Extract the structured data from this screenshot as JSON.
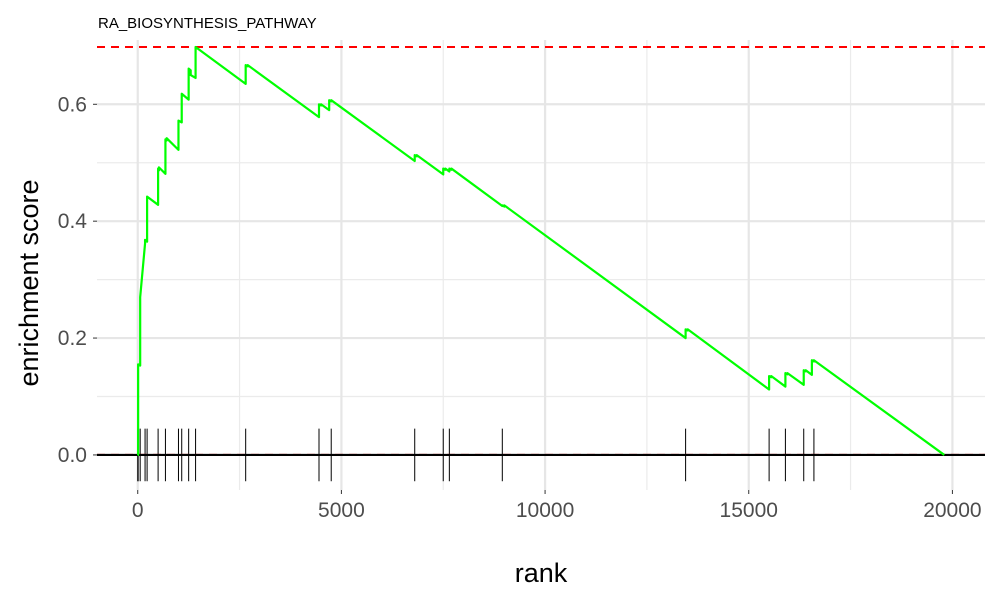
{
  "chart_data": {
    "type": "line",
    "title": "RA_BIOSYNTHESIS_PATHWAY",
    "xlabel": "rank",
    "ylabel": "enrichment score",
    "xlim": [
      -1000,
      20800
    ],
    "ylim": [
      -0.06,
      0.71
    ],
    "x_ticks": [
      0,
      5000,
      10000,
      15000,
      20000
    ],
    "x_tick_labels": [
      "0",
      "5000",
      "10000",
      "15000",
      "20000"
    ],
    "y_ticks": [
      0.0,
      0.2,
      0.4,
      0.6
    ],
    "y_tick_labels": [
      "0.0",
      "0.2",
      "0.4",
      "0.6"
    ],
    "grid": true,
    "legend": "none",
    "series": [
      {
        "color": "#00ff00",
        "x": [
          0,
          10,
          10,
          60,
          60,
          180,
          180,
          230,
          230,
          500,
          500,
          520,
          520,
          680,
          680,
          710,
          710,
          1000,
          1000,
          1080,
          1080,
          1250,
          1250,
          1300,
          1300,
          1420,
          1420,
          2650,
          2650,
          2700,
          2700,
          4450,
          4450,
          4500,
          4500,
          4700,
          4700,
          4750,
          4750,
          6800,
          6800,
          6850,
          6850,
          7500,
          7500,
          7550,
          7550,
          7650,
          7650,
          7700,
          7700,
          8950,
          8950,
          9000,
          9000,
          13450,
          13450,
          13500,
          13500,
          15500,
          15500,
          15550,
          15550,
          15900,
          15900,
          15950,
          15950,
          16350,
          16350,
          16400,
          16400,
          16550,
          16550,
          16600,
          16600,
          19800
        ],
        "y": [
          0.0,
          0.0,
          0.155,
          0.153,
          0.27,
          0.362,
          0.368,
          0.365,
          0.442,
          0.428,
          0.49,
          0.487,
          0.492,
          0.481,
          0.54,
          0.538,
          0.542,
          0.522,
          0.572,
          0.569,
          0.618,
          0.608,
          0.661,
          0.658,
          0.65,
          0.645,
          0.698,
          0.635,
          0.667,
          0.665,
          0.667,
          0.578,
          0.6,
          0.598,
          0.6,
          0.59,
          0.607,
          0.605,
          0.607,
          0.503,
          0.513,
          0.511,
          0.513,
          0.48,
          0.49,
          0.488,
          0.49,
          0.485,
          0.49,
          0.488,
          0.49,
          0.426,
          0.427,
          0.425,
          0.427,
          0.2,
          0.215,
          0.213,
          0.215,
          0.112,
          0.135,
          0.133,
          0.135,
          0.117,
          0.14,
          0.138,
          0.14,
          0.12,
          0.145,
          0.143,
          0.145,
          0.137,
          0.162,
          0.16,
          0.162,
          0.0
        ]
      }
    ],
    "reference_lines": [
      {
        "y": 0.698,
        "color": "#ff0000",
        "style": "dashed"
      },
      {
        "y": 0.0,
        "color": "#ff0000",
        "style": "dashed"
      },
      {
        "y": 0.0,
        "color": "#000000",
        "style": "solid"
      }
    ],
    "gene_hits": {
      "color": "#000000",
      "y_range": [
        -0.045,
        0.045
      ],
      "positions": [
        0,
        10,
        60,
        180,
        230,
        500,
        680,
        1000,
        1080,
        1250,
        1420,
        2650,
        4450,
        4750,
        6800,
        7500,
        7650,
        8950,
        13450,
        15500,
        15900,
        16350,
        16600
      ]
    }
  }
}
